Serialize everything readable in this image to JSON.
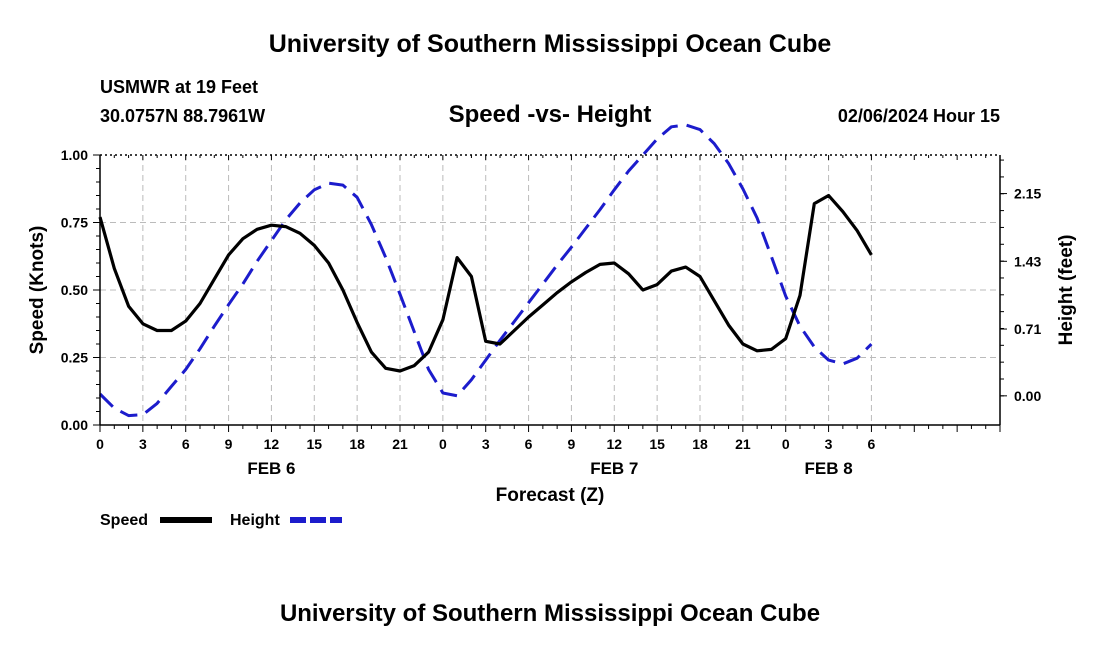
{
  "header": {
    "title": "University of Southern Mississippi Ocean Cube",
    "station": "USMWR at 19 Feet",
    "coords": "30.0757N  88.7961W",
    "chart_title": "Speed -vs- Height",
    "datetime": "02/06/2024 Hour 15"
  },
  "footer": {
    "title": "University of Southern Mississippi Ocean Cube"
  },
  "legend": {
    "speed_label": "Speed",
    "height_label": "Height"
  },
  "colors": {
    "speed": "#000000",
    "height": "#1c1ccc",
    "grid": "#bbbbbb"
  },
  "chart_data": {
    "type": "line",
    "title": "Speed -vs- Height",
    "xlabel": "Forecast (Z)",
    "ylabel": "Speed (Knots)",
    "y2label": "Height (feet)",
    "x_range_hours": [
      0,
      63
    ],
    "x_tick_hours": [
      0,
      3,
      6,
      9,
      12,
      15,
      18,
      21,
      24,
      27,
      30,
      33,
      36,
      39,
      42,
      45,
      48,
      51,
      54
    ],
    "x_tick_labels": [
      "0",
      "3",
      "6",
      "9",
      "12",
      "15",
      "18",
      "21",
      "0",
      "3",
      "6",
      "9",
      "12",
      "15",
      "18",
      "21",
      "0",
      "3",
      "6"
    ],
    "date_labels": [
      {
        "hour": 12,
        "text": "FEB 6"
      },
      {
        "hour": 36,
        "text": "FEB 7"
      },
      {
        "hour": 51,
        "text": "FEB 8"
      }
    ],
    "ylim": [
      0,
      1.0
    ],
    "y_ticks": [
      0.0,
      0.25,
      0.5,
      0.75,
      1.0
    ],
    "y_tick_labels": [
      "0.00",
      "0.25",
      "0.50",
      "0.75",
      "1.00"
    ],
    "y2lim": [
      -0.31,
      2.56
    ],
    "y2_ticks": [
      0.0,
      0.71,
      1.43,
      2.15
    ],
    "y2_tick_labels": [
      "0.00",
      "0.71",
      "1.43",
      "2.15"
    ],
    "series": [
      {
        "name": "Speed",
        "axis": "left",
        "style": "solid",
        "x": [
          0,
          1,
          2,
          3,
          4,
          5,
          6,
          7,
          8,
          9,
          10,
          11,
          12,
          13,
          14,
          15,
          16,
          17,
          18,
          19,
          20,
          21,
          22,
          23,
          24,
          25,
          26,
          27,
          28,
          29,
          30,
          31,
          32,
          33,
          34,
          35,
          36,
          37,
          38,
          39,
          40,
          41,
          42,
          43,
          44,
          45,
          46,
          47,
          48,
          49,
          50,
          51,
          52,
          53,
          54
        ],
        "values": [
          0.77,
          0.58,
          0.44,
          0.375,
          0.35,
          0.35,
          0.385,
          0.45,
          0.54,
          0.63,
          0.69,
          0.725,
          0.74,
          0.735,
          0.71,
          0.665,
          0.6,
          0.5,
          0.38,
          0.27,
          0.21,
          0.2,
          0.22,
          0.27,
          0.39,
          0.62,
          0.55,
          0.31,
          0.3,
          0.35,
          0.4,
          0.445,
          0.49,
          0.53,
          0.565,
          0.595,
          0.6,
          0.56,
          0.5,
          0.52,
          0.57,
          0.585,
          0.55,
          0.46,
          0.37,
          0.3,
          0.275,
          0.28,
          0.32,
          0.48,
          0.82,
          0.85,
          0.79,
          0.72,
          0.63
        ]
      },
      {
        "name": "Height",
        "axis": "right",
        "style": "dashed",
        "x": [
          0,
          1,
          2,
          3,
          4,
          5,
          6,
          7,
          8,
          9,
          10,
          11,
          12,
          13,
          14,
          15,
          16,
          17,
          18,
          19,
          20,
          21,
          22,
          23,
          24,
          25,
          26,
          27,
          28,
          29,
          30,
          31,
          32,
          33,
          34,
          35,
          36,
          37,
          38,
          39,
          40,
          41,
          42,
          43,
          44,
          45,
          46,
          47,
          48,
          49,
          50,
          51,
          52,
          53,
          54
        ],
        "values": [
          0.02,
          -0.13,
          -0.21,
          -0.2,
          -0.08,
          0.1,
          0.28,
          0.5,
          0.74,
          0.97,
          1.19,
          1.43,
          1.65,
          1.87,
          2.05,
          2.19,
          2.26,
          2.24,
          2.11,
          1.82,
          1.47,
          1.08,
          0.68,
          0.28,
          0.03,
          0.0,
          0.17,
          0.38,
          0.59,
          0.79,
          0.99,
          1.19,
          1.39,
          1.58,
          1.78,
          1.98,
          2.19,
          2.39,
          2.56,
          2.73,
          2.86,
          2.88,
          2.83,
          2.68,
          2.47,
          2.2,
          1.89,
          1.48,
          1.06,
          0.74,
          0.52,
          0.38,
          0.34,
          0.4,
          0.55
        ]
      }
    ]
  }
}
